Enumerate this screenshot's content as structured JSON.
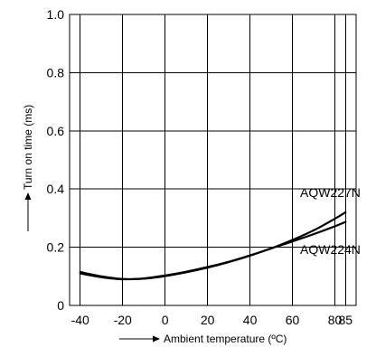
{
  "chart_data": {
    "type": "line",
    "xlabel": "Ambient temperature (ºC)",
    "ylabel": "Turn on time (ms)",
    "xlim": [
      -45,
      90
    ],
    "ylim": [
      0,
      1.0
    ],
    "x_ticks": [
      -40,
      -20,
      0,
      20,
      40,
      60,
      80,
      85
    ],
    "x_tick_labels": [
      "-40",
      "-20",
      "0",
      "20",
      "40",
      "60",
      "80",
      "85"
    ],
    "y_ticks": [
      0,
      0.2,
      0.4,
      0.6,
      0.8,
      1.0
    ],
    "y_tick_labels": [
      "0",
      "0.2",
      "0.4",
      "0.6",
      "0.8",
      "1.0"
    ],
    "grid": true,
    "series": [
      {
        "name": "AQW227N",
        "x": [
          -40,
          -30,
          -20,
          -10,
          0,
          10,
          20,
          30,
          40,
          50,
          60,
          70,
          80,
          85
        ],
        "y": [
          0.11,
          0.097,
          0.09,
          0.093,
          0.103,
          0.116,
          0.132,
          0.15,
          0.172,
          0.196,
          0.225,
          0.258,
          0.298,
          0.32
        ]
      },
      {
        "name": "AQW224N",
        "x": [
          -40,
          -30,
          -20,
          -10,
          0,
          10,
          20,
          30,
          40,
          50,
          60,
          70,
          80,
          85
        ],
        "y": [
          0.115,
          0.1,
          0.091,
          0.092,
          0.101,
          0.114,
          0.13,
          0.149,
          0.171,
          0.196,
          0.22,
          0.245,
          0.272,
          0.287
        ]
      }
    ]
  }
}
